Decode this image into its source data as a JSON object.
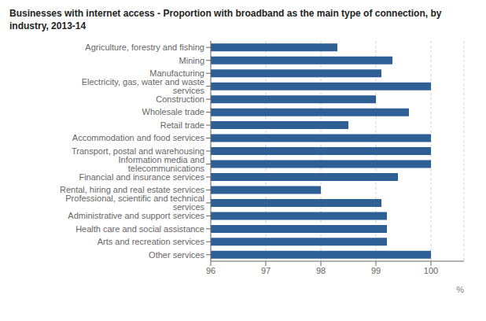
{
  "chart_data": {
    "type": "bar",
    "orientation": "horizontal",
    "title": "Businesses with internet access - Proportion with broadband as the main type of connection, by\nindustry, 2013-14",
    "categories": [
      "Agriculture, forestry and fishing",
      "Mining",
      "Manufacturing",
      "Electricity, gas, water and waste services",
      "Construction",
      "Wholesale trade",
      "Retail trade",
      "Accommodation and food services",
      "Transport, postal and warehousing",
      "Information media and telecommunications",
      "Financial and insurance services",
      "Rental, hiring and real estate services",
      "Professional, scientific and technical services",
      "Administrative and support services",
      "Health care and social assistance",
      "Arts and recreation services",
      "Other services"
    ],
    "values": [
      98.3,
      99.3,
      99.1,
      100.0,
      99.0,
      99.6,
      98.5,
      100.0,
      100.0,
      100.0,
      99.4,
      98.0,
      99.1,
      99.2,
      99.2,
      99.2,
      100.0
    ],
    "color": "#2E6096",
    "xlim": [
      96,
      100.6
    ],
    "xticks": [
      96,
      97,
      98,
      99,
      100
    ],
    "xlabel": "%",
    "grid": true
  }
}
